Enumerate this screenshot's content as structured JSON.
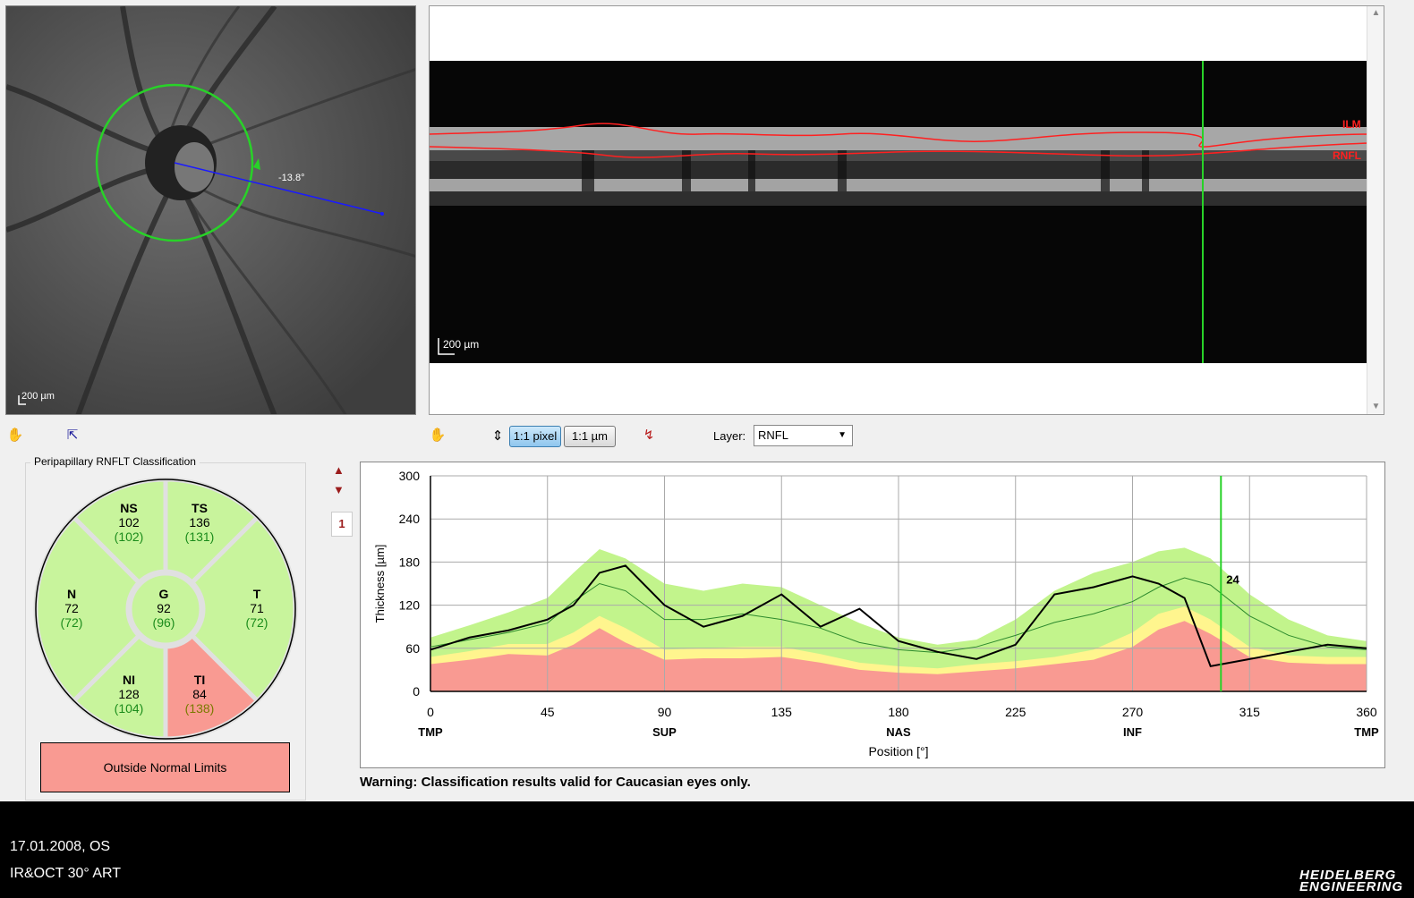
{
  "fundus": {
    "scale_label": "200 µm",
    "angle_label": "-13.8°"
  },
  "bscan": {
    "scale_label": "200 µm",
    "layer_ilm": "ILM",
    "layer_rnfl": "RNFL"
  },
  "toolbar": {
    "btn_pixel": "1:1 pixel",
    "btn_um": "1:1 µm",
    "layer_label": "Layer:",
    "layer_value": "RNFL"
  },
  "classification": {
    "title": "Peripapillary RNFLT Classification",
    "sectors": [
      {
        "id": "NS",
        "value": "102",
        "normal": "(102)",
        "color": "#c8f49c"
      },
      {
        "id": "TS",
        "value": "136",
        "normal": "(131)",
        "color": "#c8f49c"
      },
      {
        "id": "N",
        "value": "72",
        "normal": "(72)",
        "color": "#c8f49c"
      },
      {
        "id": "G",
        "value": "92",
        "normal": "(96)",
        "color": "#c8f49c"
      },
      {
        "id": "T",
        "value": "71",
        "normal": "(72)",
        "color": "#c8f49c"
      },
      {
        "id": "NI",
        "value": "128",
        "normal": "(104)",
        "color": "#c8f49c"
      },
      {
        "id": "TI",
        "value": "84",
        "normal": "(138)",
        "color": "#f99a92"
      }
    ],
    "status": "Outside Normal Limits"
  },
  "tab_number": "1",
  "warning": "Warning: Classification results valid for Caucasian eyes only.",
  "footer": {
    "line1": "17.01.2008, OS",
    "line2": "IR&OCT 30° ART",
    "logo_line1": "HEIDELBERG",
    "logo_line2": "ENGINEERING"
  },
  "chart_data": {
    "type": "area",
    "ylabel": "Thickness [µm]",
    "xlabel": "Position [°]",
    "ylim": [
      0,
      300
    ],
    "xlim": [
      0,
      360
    ],
    "y_ticks": [
      "0",
      "60",
      "120",
      "180",
      "240",
      "300"
    ],
    "x_ticks": [
      "0",
      "45",
      "90",
      "135",
      "180",
      "225",
      "270",
      "315",
      "360"
    ],
    "region_labels": [
      {
        "x": 0,
        "label": "TMP"
      },
      {
        "x": 90,
        "label": "SUP"
      },
      {
        "x": 180,
        "label": "NAS"
      },
      {
        "x": 270,
        "label": "INF"
      },
      {
        "x": 360,
        "label": "TMP"
      }
    ],
    "cursor": {
      "x": 304,
      "label": "24"
    },
    "grid": true,
    "x": [
      0,
      15,
      30,
      45,
      55,
      65,
      75,
      90,
      105,
      120,
      135,
      150,
      165,
      180,
      195,
      210,
      225,
      240,
      255,
      270,
      280,
      290,
      300,
      315,
      330,
      345,
      360
    ],
    "bands": {
      "red": [
        38,
        44,
        52,
        50,
        65,
        88,
        68,
        44,
        46,
        46,
        48,
        40,
        30,
        26,
        24,
        28,
        32,
        38,
        44,
        62,
        86,
        98,
        80,
        48,
        40,
        38,
        38
      ],
      "yellow": [
        48,
        56,
        66,
        66,
        82,
        105,
        88,
        58,
        60,
        62,
        62,
        52,
        40,
        35,
        32,
        38,
        42,
        48,
        58,
        82,
        108,
        118,
        100,
        62,
        50,
        48,
        48
      ],
      "green": [
        75,
        92,
        110,
        130,
        165,
        198,
        185,
        150,
        140,
        150,
        145,
        120,
        95,
        75,
        65,
        72,
        100,
        140,
        165,
        180,
        195,
        200,
        185,
        135,
        100,
        78,
        70
      ]
    },
    "series": [
      {
        "name": "normal-mean",
        "values": [
          62,
          72,
          82,
          95,
          125,
          150,
          140,
          100,
          100,
          108,
          100,
          88,
          68,
          58,
          54,
          62,
          78,
          96,
          108,
          125,
          145,
          158,
          148,
          105,
          78,
          62,
          58
        ]
      },
      {
        "name": "patient",
        "values": [
          58,
          75,
          85,
          100,
          120,
          165,
          175,
          120,
          90,
          105,
          135,
          90,
          115,
          70,
          55,
          45,
          65,
          135,
          145,
          160,
          150,
          130,
          35,
          45,
          55,
          65,
          60
        ]
      }
    ]
  }
}
